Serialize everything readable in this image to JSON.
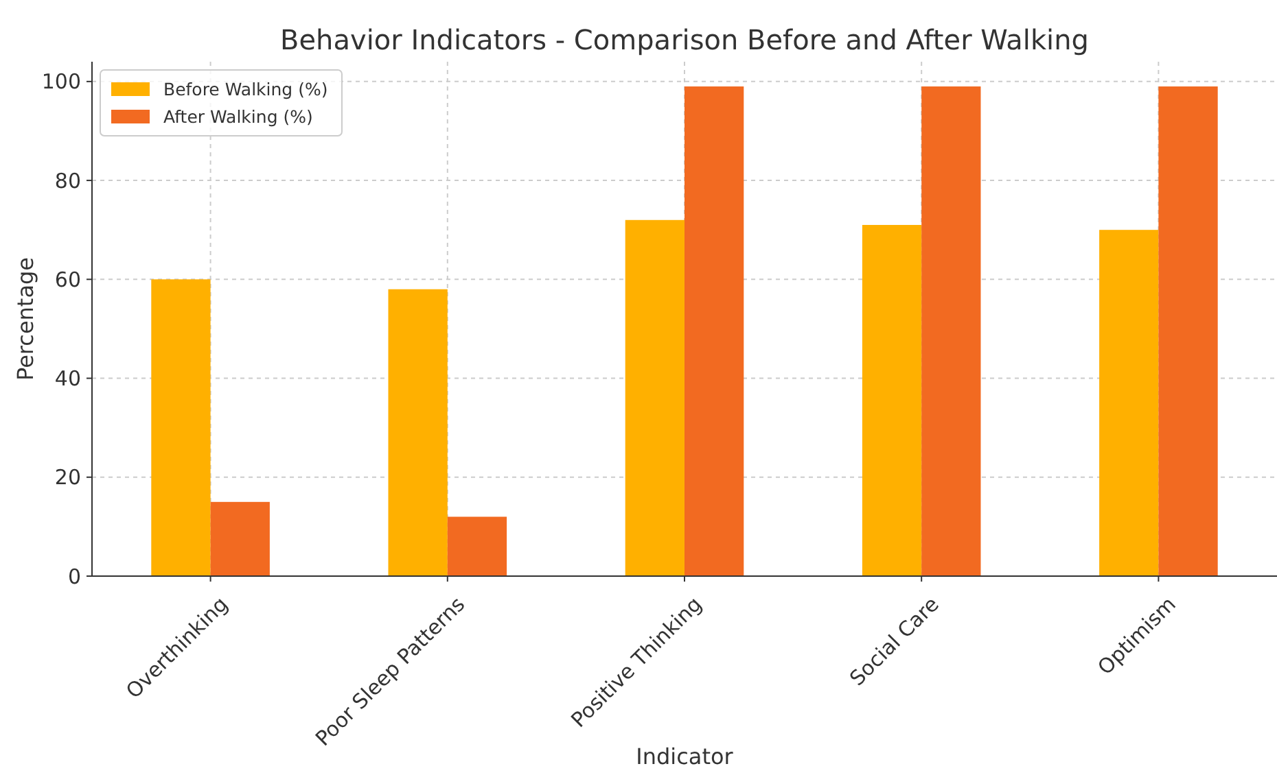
{
  "chart_data": {
    "type": "bar",
    "title": "Behavior Indicators - Comparison Before and After Walking",
    "xlabel": "Indicator",
    "ylabel": "Percentage",
    "categories": [
      "Overthinking",
      "Poor Sleep Patterns",
      "Positive Thinking",
      "Social Care",
      "Optimism"
    ],
    "series": [
      {
        "name": "Before Walking (%)",
        "color": "#ffb000",
        "values": [
          60,
          58,
          72,
          71,
          70
        ]
      },
      {
        "name": "After Walking (%)",
        "color": "#f26a21",
        "values": [
          15,
          12,
          99,
          99,
          99
        ]
      }
    ],
    "ylim": [
      0,
      104
    ],
    "yticks": [
      0,
      20,
      40,
      60,
      80,
      100
    ],
    "grid": true,
    "legend": "top left"
  }
}
